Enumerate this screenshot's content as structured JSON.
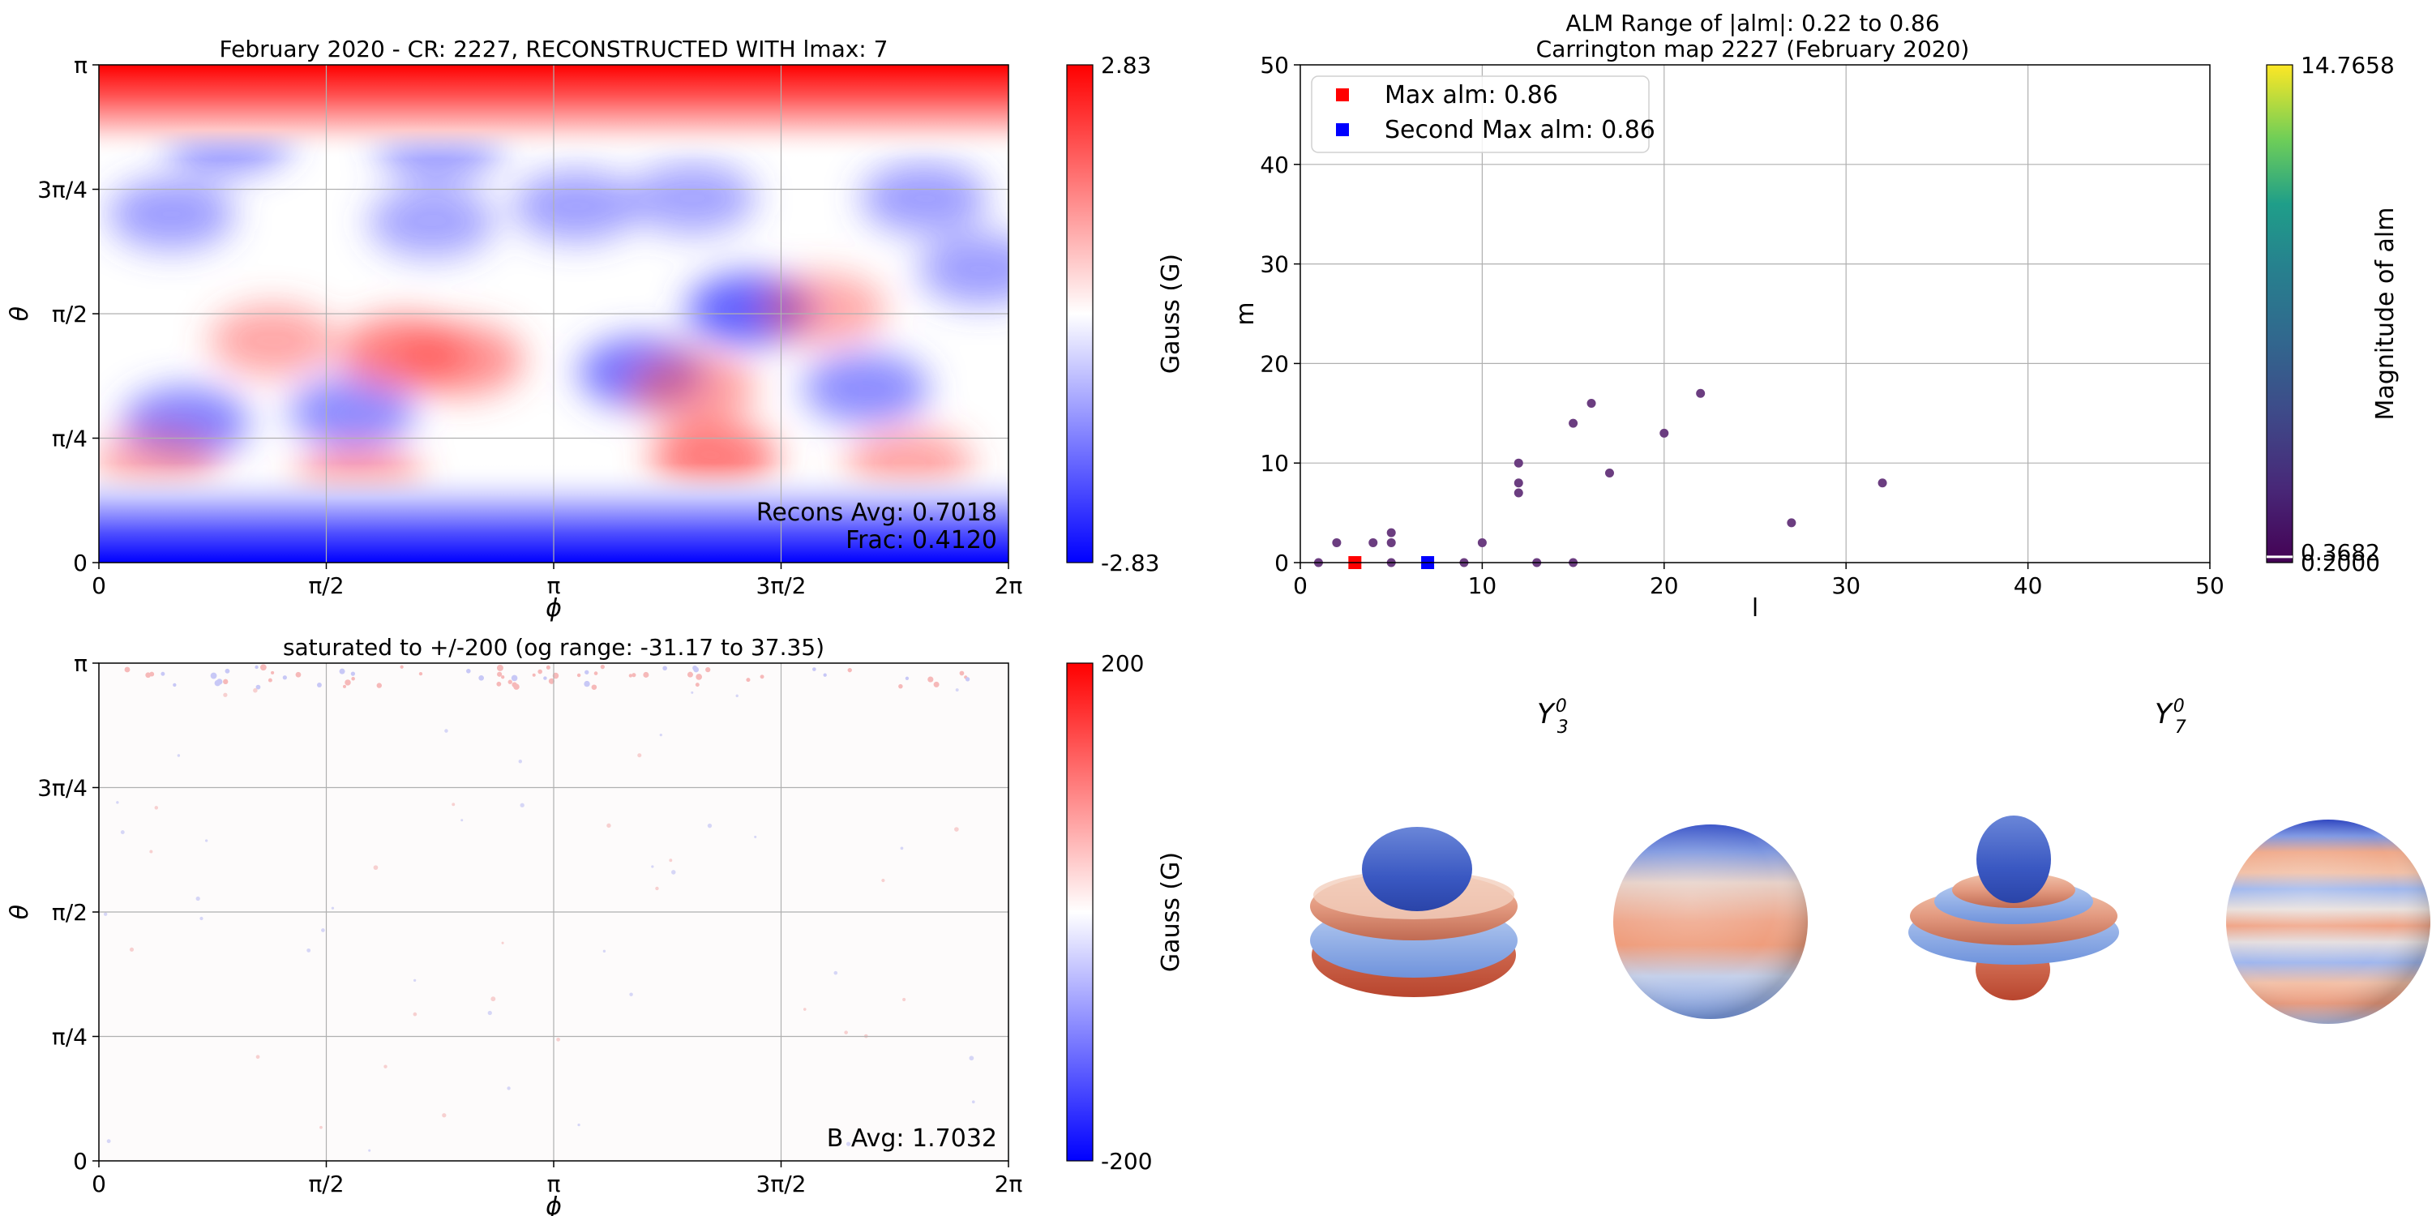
{
  "chart_data": [
    {
      "id": "reconstruction",
      "type": "heatmap",
      "title": "February 2020 - CR: 2227, RECONSTRUCTED WITH lmax: 7",
      "xlabel": "ϕ",
      "ylabel": "θ",
      "xticks": [
        "0",
        "π/2",
        "π",
        "3π/2",
        "2π"
      ],
      "yticks": [
        "0",
        "π/4",
        "π/2",
        "3π/4",
        "π"
      ],
      "xlim": [
        0,
        6.2832
      ],
      "ylim": [
        0,
        3.1416
      ],
      "grid": true,
      "colormap": "bwr",
      "colorbar": {
        "label": "Gauss (G)",
        "min": -2.83,
        "max": 2.83,
        "min_label": "-2.83",
        "max_label": "2.83"
      },
      "annotations": [
        "Recons Avg: 0.7018",
        "Frac: 0.4120"
      ],
      "features": [
        {
          "phi": 0.9,
          "theta": 2.69,
          "value": -0.9
        },
        {
          "phi": 2.35,
          "theta": 2.64,
          "value": -0.6
        },
        {
          "phi": 2.3,
          "theta": 2.15,
          "value": -0.5
        },
        {
          "phi": 3.3,
          "theta": 2.25,
          "value": -0.55
        },
        {
          "phi": 4.1,
          "theta": 2.3,
          "value": -0.5
        },
        {
          "phi": 5.7,
          "theta": 2.3,
          "value": -0.6
        },
        {
          "phi": 4.5,
          "theta": 1.6,
          "value": -1.6
        },
        {
          "phi": 3.75,
          "theta": 1.2,
          "value": -1.3
        },
        {
          "phi": 0.6,
          "theta": 0.88,
          "value": -1.1
        },
        {
          "phi": 1.75,
          "theta": 0.95,
          "value": -0.9
        },
        {
          "phi": 5.3,
          "theta": 1.1,
          "value": -0.9
        },
        {
          "phi": 6.1,
          "theta": 1.85,
          "value": -0.6
        },
        {
          "phi": 0.5,
          "theta": 2.2,
          "value": -0.6
        },
        {
          "phi": 2.1,
          "theta": 1.33,
          "value": 1.1
        },
        {
          "phi": 2.5,
          "theta": 1.28,
          "value": 0.8
        },
        {
          "phi": 4.25,
          "theta": 0.66,
          "value": 1.2
        },
        {
          "phi": 4.1,
          "theta": 1.1,
          "value": 0.6
        },
        {
          "phi": 1.2,
          "theta": 1.4,
          "value": 0.45
        },
        {
          "phi": 1.8,
          "theta": 0.52,
          "value": 0.55
        },
        {
          "phi": 5.6,
          "theta": 0.62,
          "value": 0.45
        },
        {
          "phi": 5.0,
          "theta": 1.6,
          "value": 0.4
        },
        {
          "phi": 0.4,
          "theta": 0.62,
          "value": 0.35
        }
      ]
    },
    {
      "id": "original",
      "type": "heatmap",
      "title": "saturated to +/-200 (og range: -31.17 to 37.35)",
      "xlabel": "ϕ",
      "ylabel": "θ",
      "xticks": [
        "0",
        "π/2",
        "π",
        "3π/2",
        "2π"
      ],
      "yticks": [
        "0",
        "π/4",
        "π/2",
        "3π/4",
        "π"
      ],
      "xlim": [
        0,
        6.2832
      ],
      "ylim": [
        0,
        3.1416
      ],
      "grid": true,
      "colormap": "bwr",
      "colorbar": {
        "label": "Gauss (G)",
        "min": -200,
        "max": 200,
        "min_label": "-200",
        "max_label": "200"
      },
      "annotations": [
        "B Avg: 1.7032"
      ]
    },
    {
      "id": "alm-scatter",
      "type": "scatter",
      "title": "ALM Range of |alm|: 0.22 to 0.86",
      "subtitle": "Carrington map 2227 (February 2020)",
      "xlabel": "l",
      "ylabel": "m",
      "xlim": [
        0,
        50
      ],
      "ylim": [
        0,
        50
      ],
      "xticks": [
        0,
        10,
        20,
        30,
        40,
        50
      ],
      "yticks": [
        0,
        10,
        20,
        30,
        40,
        50
      ],
      "grid": true,
      "legend_position": "top-left",
      "points": [
        [
          1,
          0
        ],
        [
          2,
          2
        ],
        [
          4,
          2
        ],
        [
          5,
          3
        ],
        [
          5,
          2
        ],
        [
          5,
          0
        ],
        [
          9,
          0
        ],
        [
          10,
          2
        ],
        [
          12,
          10
        ],
        [
          12,
          8
        ],
        [
          12,
          7
        ],
        [
          13,
          0
        ],
        [
          15,
          14
        ],
        [
          15,
          0
        ],
        [
          16,
          16
        ],
        [
          17,
          9
        ],
        [
          20,
          13
        ],
        [
          22,
          17
        ],
        [
          27,
          4
        ],
        [
          32,
          8
        ]
      ],
      "point_color": "#6b3d80",
      "highlights": [
        {
          "name": "Max alm: 0.86",
          "l": 3,
          "m": 0,
          "color": "#ff0000"
        },
        {
          "name": "Second Max alm: 0.86",
          "l": 7,
          "m": 0,
          "color": "#0000ff"
        }
      ],
      "colorbar": {
        "label": "Magnitude of alm",
        "min": 0.2,
        "max": 14.7658,
        "min_label": "0.2000",
        "max_label": "14.7658",
        "mark": 0.3682,
        "mark_label": "0.3682",
        "colormap": "viridis"
      }
    },
    {
      "id": "harmonics",
      "type": "other",
      "panels": [
        {
          "label": "Y",
          "sub": "3",
          "sup": "0",
          "l": 3,
          "m": 0
        },
        {
          "label": "Y",
          "sub": "7",
          "sup": "0",
          "l": 7,
          "m": 0
        }
      ]
    }
  ]
}
